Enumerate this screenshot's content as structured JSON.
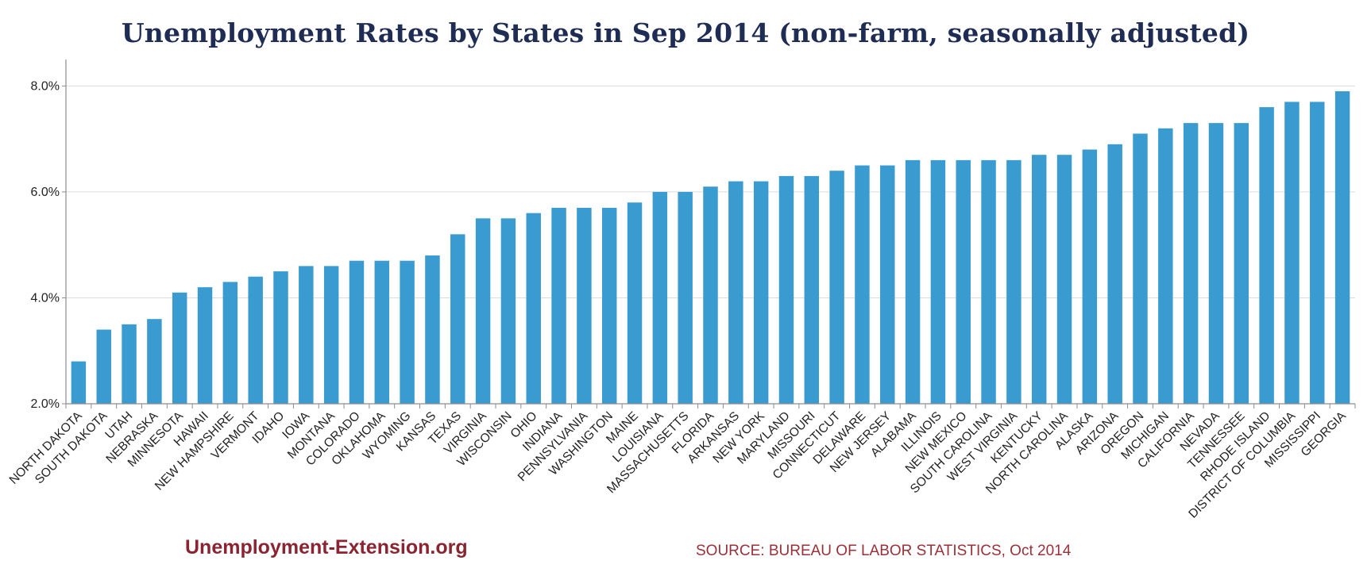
{
  "chart_data": {
    "type": "bar",
    "title": "Unemployment Rates by States in Sep 2014 (non-farm, seasonally adjusted)",
    "xlabel": "",
    "ylabel": "",
    "ylim": [
      2.0,
      8.5
    ],
    "yticks": [
      "2.0%",
      "4.0%",
      "6.0%",
      "8.0%"
    ],
    "ytick_values": [
      2.0,
      4.0,
      6.0,
      8.0
    ],
    "grid": true,
    "bar_color": "#3a9bd0",
    "categories": [
      "NORTH DAKOTA",
      "SOUTH DAKOTA",
      "UTAH",
      "NEBRASKA",
      "MINNESOTA",
      "HAWAII",
      "NEW HAMPSHIRE",
      "VERMONT",
      "IDAHO",
      "IOWA",
      "MONTANA",
      "COLORADO",
      "OKLAHOMA",
      "WYOMING",
      "KANSAS",
      "TEXAS",
      "VIRGINIA",
      "WISCONSIN",
      "OHIO",
      "INDIANA",
      "PENNSYLVANIA",
      "WASHINGTON",
      "MAINE",
      "LOUISIANA",
      "MASSACHUSETTS",
      "FLORIDA",
      "ARKANSAS",
      "NEW YORK",
      "MARYLAND",
      "MISSOURI",
      "CONNECTICUT",
      "DELAWARE",
      "NEW JERSEY",
      "ALABAMA",
      "ILLINOIS",
      "NEW MEXICO",
      "SOUTH CAROLINA",
      "WEST VIRGINIA",
      "KENTUCKY",
      "NORTH CAROLINA",
      "ALASKA",
      "ARIZONA",
      "OREGON",
      "MICHIGAN",
      "CALIFORNIA",
      "NEVADA",
      "TENNESSEE",
      "RHODE ISLAND",
      "DISTRICT OF COLUMBIA",
      "MISSISSIPPI",
      "GEORGIA"
    ],
    "values": [
      2.8,
      3.4,
      3.5,
      3.6,
      4.1,
      4.2,
      4.3,
      4.4,
      4.5,
      4.6,
      4.6,
      4.7,
      4.7,
      4.7,
      4.8,
      5.2,
      5.5,
      5.5,
      5.6,
      5.7,
      5.7,
      5.7,
      5.8,
      6.0,
      6.0,
      6.1,
      6.2,
      6.2,
      6.3,
      6.3,
      6.4,
      6.5,
      6.5,
      6.6,
      6.6,
      6.6,
      6.6,
      6.6,
      6.7,
      6.7,
      6.8,
      6.9,
      7.1,
      7.2,
      7.3,
      7.3,
      7.3,
      7.6,
      7.7,
      7.7,
      7.9
    ]
  },
  "footer": {
    "brand": "Unemployment-Extension.org",
    "source": "SOURCE: BUREAU OF LABOR STATISTICS, Oct 2014"
  }
}
